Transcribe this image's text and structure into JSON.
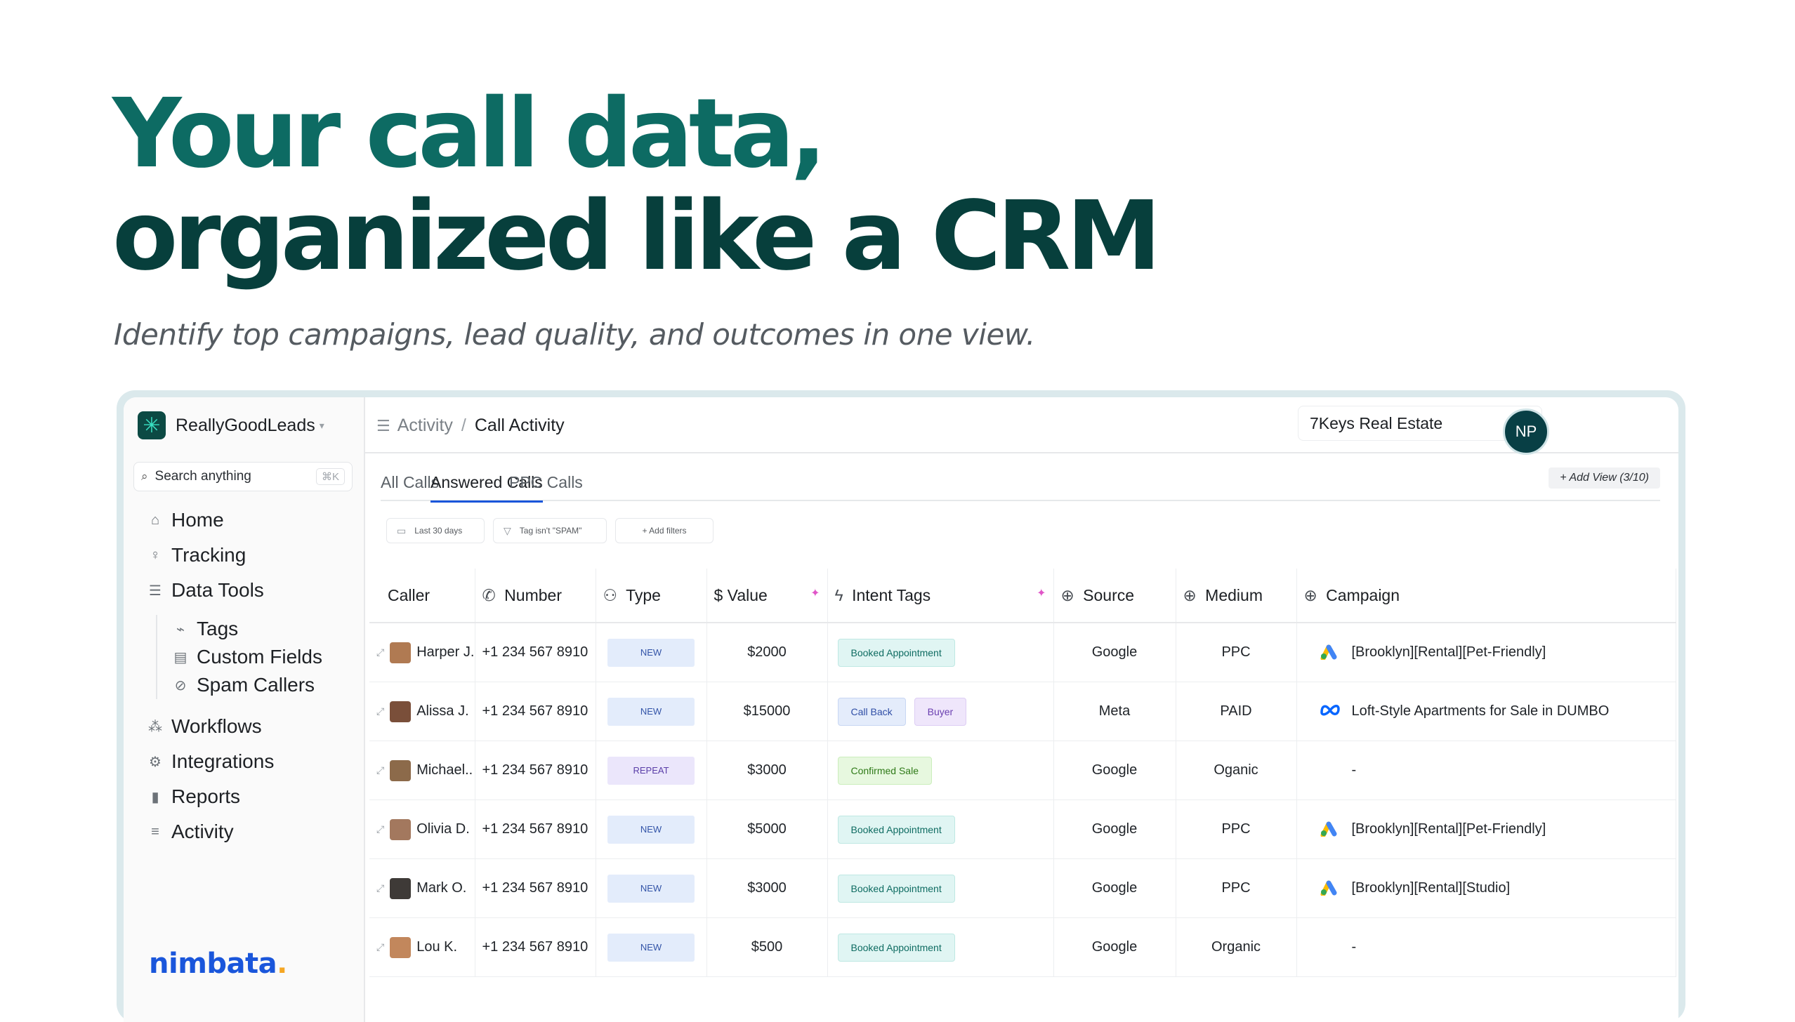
{
  "hero": {
    "title_line1": "Your call data,",
    "title_line2": "organized like a CRM",
    "subtitle": "Identify top campaigns, lead quality, and outcomes in one view."
  },
  "sidebar": {
    "brand": "ReallyGoodLeads",
    "search_label": "Search anything",
    "search_shortcut": "⌘K",
    "nav": [
      {
        "label": "Home",
        "icon": "home-icon"
      },
      {
        "label": "Tracking",
        "icon": "pin-icon"
      },
      {
        "label": "Data Tools",
        "icon": "database-icon"
      }
    ],
    "subnav": [
      {
        "label": "Tags",
        "icon": "tag-icon"
      },
      {
        "label": "Custom Fields",
        "icon": "fields-icon"
      },
      {
        "label": "Spam Callers",
        "icon": "block-icon"
      }
    ],
    "nav2": [
      {
        "label": "Workflows",
        "icon": "workflow-icon"
      },
      {
        "label": "Integrations",
        "icon": "gear-icon"
      },
      {
        "label": "Reports",
        "icon": "chart-icon"
      },
      {
        "label": "Activity",
        "icon": "list-icon"
      }
    ],
    "footer_logo": "nimbata"
  },
  "topbar": {
    "crumb_parent": "Activity",
    "crumb_sep": "/",
    "crumb_current": "Call Activity",
    "account": "7Keys Real Estate",
    "avatar_initials": "NP"
  },
  "tabs": [
    "All Calls",
    "Answered Calls",
    "PPC Calls"
  ],
  "active_tab": "Answered Calls",
  "add_view": "+ Add View (3/10)",
  "filters": [
    "Last 30 days",
    "Tag isn't \"SPAM\"",
    "+ Add filters"
  ],
  "columns": [
    "Caller",
    "Number",
    "Type",
    "$ Value",
    "Intent Tags",
    "Source",
    "Medium",
    "Campaign"
  ],
  "rows": [
    {
      "caller": "Harper J.",
      "number": "+1 234 567 8910",
      "type": "NEW",
      "value": "$2000",
      "tags": [
        "Booked Appointment"
      ],
      "source": "Google",
      "medium": "PPC",
      "campaign": "[Brooklyn][Rental][Pet-Friendly]",
      "campaign_icon": "google-ads-icon"
    },
    {
      "caller": "Alissa J.",
      "number": "+1 234 567 8910",
      "type": "NEW",
      "value": "$15000",
      "tags": [
        "Call Back",
        "Buyer"
      ],
      "source": "Meta",
      "medium": "PAID",
      "campaign": "Loft-Style Apartments for Sale in DUMBO",
      "campaign_icon": "meta-icon"
    },
    {
      "caller": "Michael..",
      "number": "+1 234 567 8910",
      "type": "REPEAT",
      "value": "$3000",
      "tags": [
        "Confirmed Sale"
      ],
      "source": "Google",
      "medium": "Oganic",
      "campaign": "-",
      "campaign_icon": ""
    },
    {
      "caller": "Olivia D.",
      "number": "+1 234 567 8910",
      "type": "NEW",
      "value": "$5000",
      "tags": [
        "Booked Appointment"
      ],
      "source": "Google",
      "medium": "PPC",
      "campaign": "[Brooklyn][Rental][Pet-Friendly]",
      "campaign_icon": "google-ads-icon"
    },
    {
      "caller": "Mark O.",
      "number": "+1 234 567 8910",
      "type": "NEW",
      "value": "$3000",
      "tags": [
        "Booked Appointment"
      ],
      "source": "Google",
      "medium": "PPC",
      "campaign": "[Brooklyn][Rental][Studio]",
      "campaign_icon": "google-ads-icon"
    },
    {
      "caller": "Lou K.",
      "number": "+1 234 567 8910",
      "type": "NEW",
      "value": "$500",
      "tags": [
        "Booked Appointment"
      ],
      "source": "Google",
      "medium": "Organic",
      "campaign": "-",
      "campaign_icon": ""
    }
  ],
  "colors": {
    "accent_teal": "#0d6b63",
    "dark_teal": "#073f3c",
    "blue": "#1a56db",
    "value_text": "#9b1c7e"
  }
}
